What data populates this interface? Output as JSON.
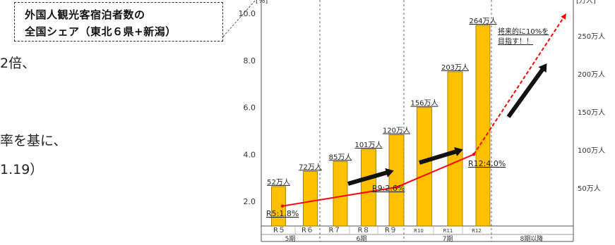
{
  "callout": {
    "line1": "外国人観光客宿泊者数の",
    "line2": "全国シェア（東北６県+新潟）"
  },
  "body_text": {
    "line1": "2倍、",
    "line2": "率を基に、",
    "line3": "1.19）"
  },
  "chart_data": {
    "type": "bar",
    "left_axis_unit": "[%]",
    "right_axis_unit": "[万人]",
    "left_ticks": [
      "2.0",
      "4.0",
      "6.0",
      "8.0",
      "10.0"
    ],
    "left_tick_values": [
      2,
      4,
      6,
      8,
      10
    ],
    "right_ticks": [
      "50万人",
      "100万人",
      "150万人",
      "200万人",
      "250万人"
    ],
    "right_tick_values": [
      50,
      100,
      150,
      200,
      250
    ],
    "right_range": [
      0,
      290
    ],
    "left_range": [
      1,
      10.6
    ],
    "categories": [
      "R５",
      "R６",
      "R７",
      "R８",
      "R９",
      "R10",
      "R11",
      "R12"
    ],
    "bars": {
      "name": "外国人観光客宿泊者数",
      "values": [
        52,
        72,
        85,
        101,
        120,
        156,
        203,
        264
      ],
      "labels": [
        "52万人",
        "72万人",
        "85万人",
        "101万人",
        "120万人",
        "156万人",
        "203万人",
        "264万人"
      ]
    },
    "share_line": {
      "points": [
        {
          "index": 0,
          "value": 1.8,
          "label": "R5:1.8%"
        },
        {
          "index": 4,
          "value": 2.6,
          "label": "R9:2.6%"
        },
        {
          "index": 7,
          "value": 4.0,
          "label": "R12:4.0%"
        }
      ],
      "projection_value": 10.0,
      "projection_note": "将来的に10%を目指す！！"
    },
    "periods": [
      "5期",
      "6期",
      "7期",
      "8期以降"
    ],
    "colors": {
      "bar_fill": "#FFC000",
      "bar_stroke": "#8a6d00",
      "line": "#FF0000",
      "arrow": "#111111",
      "divider": "#444444"
    }
  }
}
